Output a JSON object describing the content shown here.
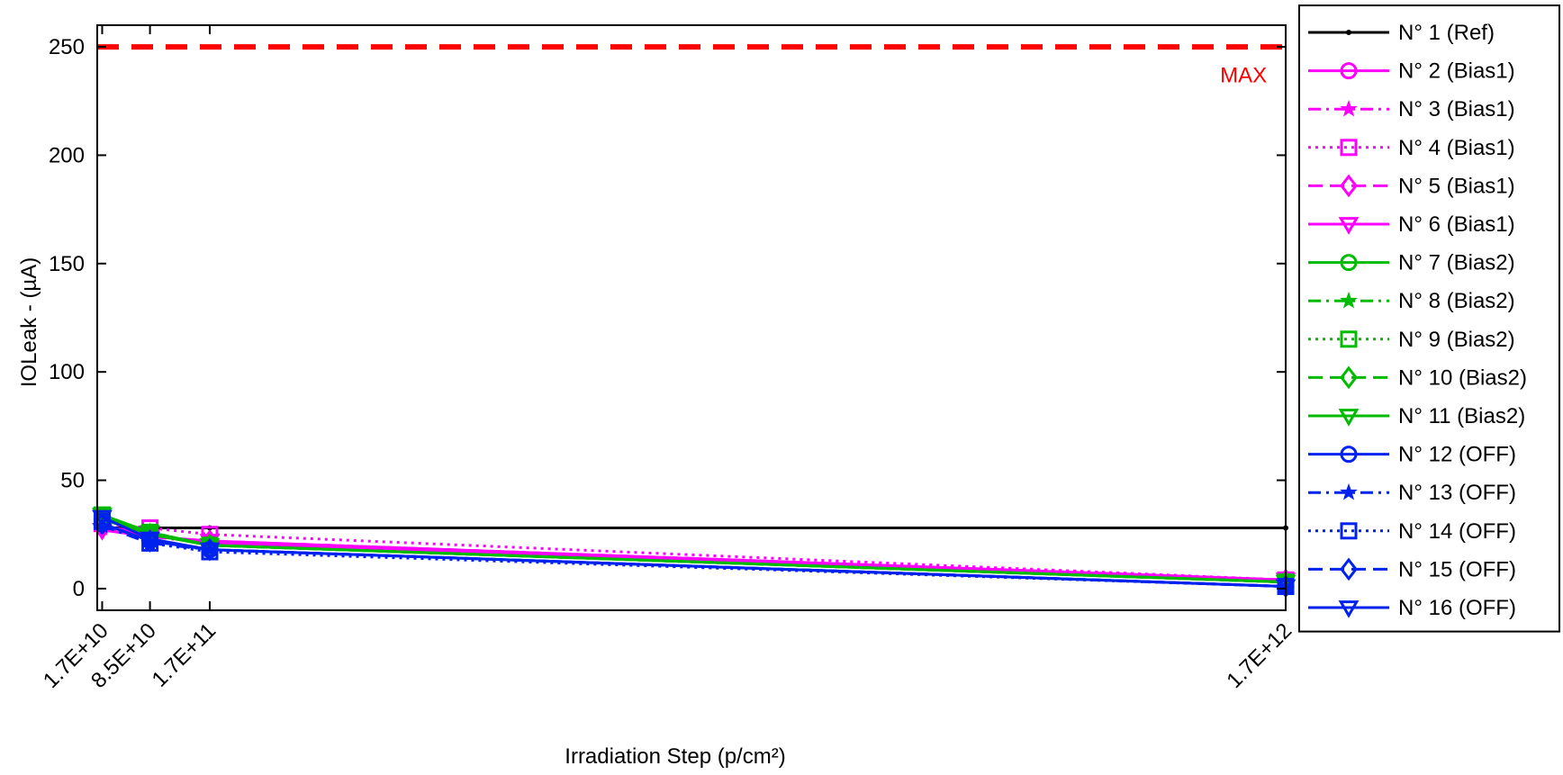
{
  "chart_data": {
    "type": "line",
    "title": "",
    "xlabel": "Irradiation Step (p/cm²)",
    "ylabel": "IOLeak - (µA)",
    "x": [
      17000000000.0,
      85000000000.0,
      170000000000.0,
      1700000000000.0
    ],
    "xtick_labels": [
      "1.7E+10",
      "8.5E+10",
      "1.7E+11",
      "1.7E+12"
    ],
    "xlim": [
      10000000000.0,
      1700000000000.0
    ],
    "ylim": [
      -10,
      260
    ],
    "yticks": [
      0,
      50,
      100,
      150,
      200,
      250
    ],
    "grid": false,
    "legend_position": "outside-right",
    "annotations": [
      {
        "text": "MAX",
        "x": 1640000000000.0,
        "y": 237,
        "color": "#ff0000"
      }
    ],
    "reference_lines": [
      {
        "label": "MAX",
        "y": 250,
        "color": "#ff0000",
        "style": "dashed"
      }
    ],
    "series": [
      {
        "name": "N° 1 (Ref)",
        "color": "#000000",
        "dash": "solid",
        "marker": "dot",
        "values": [
          28,
          28,
          28,
          28
        ]
      },
      {
        "name": "N° 2 (Bias1)",
        "color": "#ff00ff",
        "dash": "solid",
        "marker": "circle",
        "values": [
          29,
          25,
          21,
          4
        ]
      },
      {
        "name": "N° 3 (Bias1)",
        "color": "#ff00ff",
        "dash": "dashdot",
        "marker": "star",
        "values": [
          28,
          24,
          21,
          4
        ]
      },
      {
        "name": "N° 4 (Bias1)",
        "color": "#ff00ff",
        "dash": "dotted",
        "marker": "square",
        "values": [
          30,
          28,
          25,
          4
        ]
      },
      {
        "name": "N° 5 (Bias1)",
        "color": "#ff00ff",
        "dash": "dashed",
        "marker": "diamond",
        "values": [
          28,
          24,
          22,
          4
        ]
      },
      {
        "name": "N° 6 (Bias1)",
        "color": "#ff00ff",
        "dash": "solid",
        "marker": "triangle-down",
        "values": [
          27,
          24,
          22,
          4
        ]
      },
      {
        "name": "N° 7 (Bias2)",
        "color": "#00bb00",
        "dash": "solid",
        "marker": "circle",
        "values": [
          33,
          25,
          20,
          3
        ]
      },
      {
        "name": "N° 8 (Bias2)",
        "color": "#00bb00",
        "dash": "dashdot",
        "marker": "star",
        "values": [
          32,
          25,
          20,
          3
        ]
      },
      {
        "name": "N° 9 (Bias2)",
        "color": "#00bb00",
        "dash": "dotted",
        "marker": "square",
        "values": [
          34,
          26,
          20,
          3
        ]
      },
      {
        "name": "N° 10 (Bias2)",
        "color": "#00bb00",
        "dash": "dashed",
        "marker": "diamond",
        "values": [
          32,
          25,
          20,
          3
        ]
      },
      {
        "name": "N° 11 (Bias2)",
        "color": "#00bb00",
        "dash": "solid",
        "marker": "triangle-down",
        "values": [
          34,
          26,
          20,
          3
        ]
      },
      {
        "name": "N° 12 (OFF)",
        "color": "#0022ee",
        "dash": "solid",
        "marker": "circle",
        "values": [
          30,
          22,
          18,
          1
        ]
      },
      {
        "name": "N° 13 (OFF)",
        "color": "#0022ee",
        "dash": "dashdot",
        "marker": "star",
        "values": [
          29,
          21,
          18,
          1
        ]
      },
      {
        "name": "N° 14 (OFF)",
        "color": "#0022ee",
        "dash": "dotted",
        "marker": "square",
        "values": [
          31,
          21,
          17,
          1
        ]
      },
      {
        "name": "N° 15 (OFF)",
        "color": "#0022ee",
        "dash": "dashed",
        "marker": "diamond",
        "values": [
          30,
          22,
          18,
          1
        ]
      },
      {
        "name": "N° 16 (OFF)",
        "color": "#0022ee",
        "dash": "solid",
        "marker": "triangle-down",
        "values": [
          33,
          23,
          18,
          1
        ]
      }
    ]
  }
}
